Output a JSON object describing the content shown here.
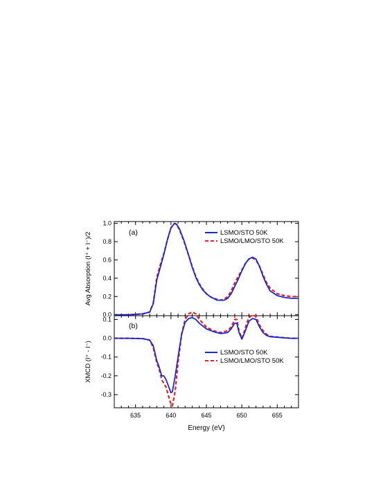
{
  "chart_data": [
    {
      "type": "line",
      "panel_label": "(a)",
      "ylabel": "Avg Absorption (I⁺ + I⁻)/2",
      "xlim": [
        632,
        658
      ],
      "ylim": [
        -0.01,
        1.02
      ],
      "xticks": [
        635,
        640,
        645,
        650,
        655
      ],
      "yticks": [
        0.0,
        0.2,
        0.4,
        0.6,
        0.8,
        1.0
      ],
      "yticklabels": [
        "0.0",
        "0.2",
        "0.4",
        "0.6",
        "0.8",
        "1.0"
      ],
      "legend_position": "top-right",
      "series": [
        {
          "name": "LSMO/STO 50K",
          "color": "#1428d6",
          "style": "solid",
          "x": [
            632,
            634,
            636,
            637,
            637.5,
            638,
            638.5,
            639,
            639.5,
            640,
            640.5,
            640.8,
            641.2,
            641.8,
            642.5,
            643,
            643.5,
            644,
            644.5,
            645,
            645.5,
            646,
            646.5,
            647,
            647.5,
            648,
            648.5,
            649,
            649.5,
            650,
            650.5,
            651,
            651.5,
            652,
            652.5,
            653,
            653.5,
            654,
            655,
            656,
            657,
            658
          ],
          "y": [
            0.0,
            0.0,
            0.01,
            0.03,
            0.12,
            0.38,
            0.52,
            0.66,
            0.82,
            0.95,
            1.0,
            0.99,
            0.94,
            0.82,
            0.65,
            0.52,
            0.41,
            0.33,
            0.27,
            0.23,
            0.2,
            0.18,
            0.16,
            0.16,
            0.16,
            0.18,
            0.23,
            0.31,
            0.39,
            0.48,
            0.56,
            0.61,
            0.63,
            0.61,
            0.53,
            0.42,
            0.33,
            0.26,
            0.21,
            0.19,
            0.18,
            0.18
          ]
        },
        {
          "name": "LSMO/LMO/STO 50K",
          "color": "#ee1c24",
          "style": "dashed",
          "x": [
            632,
            634,
            636,
            637,
            637.5,
            638,
            638.5,
            639,
            639.5,
            640,
            640.5,
            640.8,
            641.2,
            641.8,
            642.5,
            643,
            643.5,
            644,
            644.5,
            645,
            645.5,
            646,
            646.5,
            647,
            647.5,
            648,
            648.5,
            649,
            649.5,
            650,
            650.5,
            651,
            651.5,
            652,
            652.5,
            653,
            653.5,
            654,
            655,
            656,
            657,
            658
          ],
          "y": [
            0.0,
            0.0,
            0.01,
            0.03,
            0.13,
            0.41,
            0.55,
            0.67,
            0.82,
            0.95,
            1.0,
            0.99,
            0.93,
            0.81,
            0.65,
            0.53,
            0.42,
            0.34,
            0.28,
            0.23,
            0.2,
            0.18,
            0.17,
            0.16,
            0.17,
            0.2,
            0.26,
            0.35,
            0.42,
            0.49,
            0.56,
            0.61,
            0.62,
            0.6,
            0.53,
            0.44,
            0.35,
            0.29,
            0.23,
            0.21,
            0.2,
            0.2
          ]
        }
      ]
    },
    {
      "type": "line",
      "panel_label": "(b)",
      "ylabel": "XMCD (I⁺ - I⁻)",
      "xlabel": "Energy (eV)",
      "xlim": [
        632,
        658
      ],
      "ylim": [
        -0.37,
        0.12
      ],
      "xticks": [
        635,
        640,
        645,
        650,
        655
      ],
      "xticklabels": [
        "635",
        "640",
        "645",
        "650",
        "655"
      ],
      "yticks": [
        -0.3,
        -0.2,
        -0.1,
        0.0,
        0.1
      ],
      "yticklabels": [
        "-0.3",
        "-0.2",
        "-0.1",
        "0.0",
        "0.1"
      ],
      "legend_position": "right",
      "series": [
        {
          "name": "LSMO/STO 50K",
          "color": "#1428d6",
          "style": "solid",
          "x": [
            632,
            634,
            636,
            637,
            637.5,
            638,
            638.3,
            638.7,
            639,
            639.3,
            639.6,
            640,
            640.2,
            640.6,
            641,
            641.5,
            642,
            642.5,
            643,
            643.5,
            644,
            645,
            646,
            647,
            648,
            648.5,
            649,
            649.3,
            649.6,
            650,
            650.3,
            650.7,
            651,
            651.5,
            652,
            652.5,
            653,
            653.5,
            654,
            655,
            656,
            657,
            658
          ],
          "y": [
            0.0,
            0.0,
            -0.002,
            -0.01,
            -0.04,
            -0.12,
            -0.15,
            -0.2,
            -0.2,
            -0.22,
            -0.25,
            -0.29,
            -0.285,
            -0.2,
            -0.1,
            0.02,
            0.085,
            0.105,
            0.11,
            0.1,
            0.08,
            0.05,
            0.035,
            0.025,
            0.03,
            0.05,
            0.08,
            0.08,
            0.03,
            -0.005,
            0.02,
            0.06,
            0.09,
            0.105,
            0.1,
            0.06,
            0.03,
            0.015,
            0.008,
            0.005,
            0.002,
            0.0,
            0.0
          ]
        },
        {
          "name": "LSMO/LMO/STO 50K",
          "color": "#ee1c24",
          "style": "dashed",
          "x": [
            632,
            634,
            636,
            637,
            637.5,
            638,
            638.3,
            638.7,
            639,
            639.3,
            639.6,
            640,
            640.2,
            640.6,
            641,
            641.5,
            642,
            642.5,
            643,
            643.5,
            644,
            645,
            646,
            647,
            648,
            648.5,
            649,
            649.3,
            649.6,
            650,
            650.3,
            650.7,
            651,
            651.5,
            652,
            652.5,
            653,
            653.5,
            654,
            655,
            656,
            657,
            658
          ],
          "y": [
            0.0,
            0.0,
            -0.002,
            -0.01,
            -0.05,
            -0.13,
            -0.16,
            -0.22,
            -0.24,
            -0.26,
            -0.3,
            -0.35,
            -0.36,
            -0.28,
            -0.13,
            0.02,
            0.1,
            0.13,
            0.14,
            0.13,
            0.1,
            0.06,
            0.04,
            0.03,
            0.04,
            0.06,
            0.1,
            0.1,
            0.04,
            0.0,
            0.03,
            0.08,
            0.11,
            0.125,
            0.115,
            0.07,
            0.04,
            0.02,
            0.01,
            0.006,
            0.003,
            0.0,
            0.0
          ]
        }
      ]
    }
  ]
}
